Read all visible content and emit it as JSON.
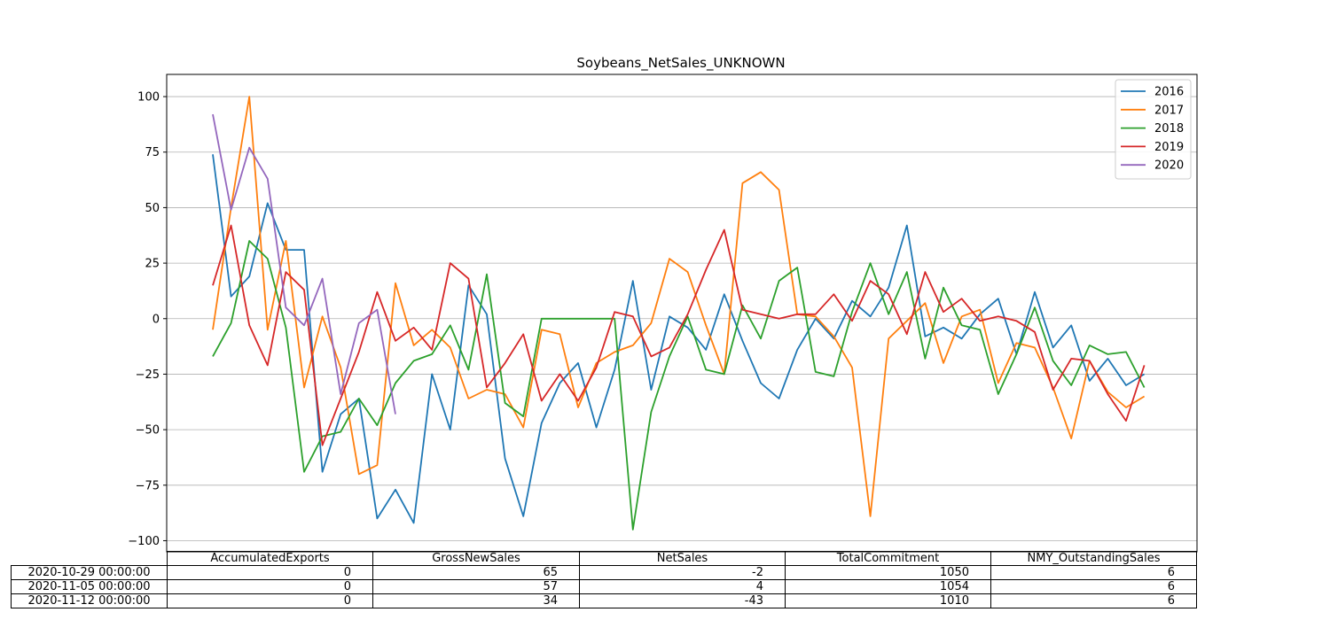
{
  "chart_data": {
    "type": "line",
    "title": "Soybeans_NetSales_UNKNOWN",
    "xlabel": "",
    "ylabel": "",
    "ylim": [
      -105,
      110
    ],
    "yticks": [
      100,
      75,
      50,
      25,
      0,
      -25,
      -50,
      -75,
      -100
    ],
    "ytick_labels": [
      "100",
      "75",
      "50",
      "25",
      "0",
      "−25",
      "−50",
      "−75",
      "−100"
    ],
    "grid": "horizontal",
    "legend_position": "top-right",
    "series": [
      {
        "name": "2016",
        "color": "#1f77b4",
        "values": [
          74,
          10,
          19,
          52,
          31,
          31,
          -69,
          -43,
          -36,
          -90,
          -77,
          -92,
          -25,
          -50,
          15,
          2,
          -63,
          -89,
          -47,
          -29,
          -20,
          -49,
          -23,
          17,
          -32,
          1,
          -4,
          -14,
          11,
          -10,
          -29,
          -36,
          -14,
          0,
          -9,
          8,
          1,
          14,
          42,
          -8,
          -4,
          -9,
          2,
          9,
          -16,
          12,
          -13,
          -3,
          -28,
          -18,
          -30,
          -25
        ]
      },
      {
        "name": "2017",
        "color": "#ff7f0e",
        "values": [
          -5,
          50,
          100,
          -5,
          35,
          -31,
          1,
          -22,
          -70,
          -66,
          16,
          -12,
          -5,
          -13,
          -36,
          -32,
          -34,
          -49,
          -5,
          -7,
          -40,
          -20,
          -15,
          -12,
          -2,
          27,
          21,
          -3,
          -25,
          61,
          66,
          58,
          2,
          1,
          -8,
          -22,
          -89,
          -9,
          -1,
          7,
          -20,
          1,
          4,
          -29,
          -11,
          -13,
          -31,
          -54,
          -19,
          -33,
          -40,
          -35
        ]
      },
      {
        "name": "2018",
        "color": "#2ca02c",
        "values": [
          -17,
          -2,
          35,
          27,
          -4,
          -69,
          -53,
          -51,
          -36,
          -48,
          -29,
          -19,
          -16,
          -3,
          -23,
          20,
          -38,
          -44,
          0,
          0,
          0,
          0,
          0,
          -95,
          -42,
          -17,
          1,
          -23,
          -25,
          6,
          -9,
          17,
          23,
          -24,
          -26,
          3,
          25,
          2,
          21,
          -18,
          14,
          -3,
          -5,
          -34,
          -16,
          5,
          -19,
          -30,
          -12,
          -16,
          -15,
          -31
        ]
      },
      {
        "name": "2019",
        "color": "#d62728",
        "values": [
          15,
          42,
          -3,
          -21,
          21,
          13,
          -57,
          -36,
          -15,
          12,
          -10,
          -4,
          -14,
          25,
          18,
          -31,
          -20,
          -7,
          -37,
          -25,
          -37,
          -22,
          3,
          1,
          -17,
          -13,
          2,
          22,
          40,
          4,
          2,
          0,
          2,
          2,
          11,
          -1,
          17,
          11,
          -7,
          21,
          3,
          9,
          -1,
          1,
          -1,
          -6,
          -32,
          -18,
          -19,
          -34,
          -46,
          -21
        ]
      },
      {
        "name": "2020",
        "color": "#9467bd",
        "values": [
          92,
          49,
          77,
          63,
          5,
          -3,
          18,
          -34,
          -2,
          4,
          -43
        ]
      }
    ],
    "table": {
      "columns": [
        "AccumulatedExports",
        "GrossNewSales",
        "NetSales",
        "TotalCommitment",
        "NMY_OutstandingSales"
      ],
      "rows": [
        {
          "label": "2020-10-29 00:00:00",
          "cells": [
            "0",
            "65",
            "-2",
            "1050",
            "6"
          ]
        },
        {
          "label": "2020-11-05 00:00:00",
          "cells": [
            "0",
            "57",
            "4",
            "1054",
            "6"
          ]
        },
        {
          "label": "2020-11-12 00:00:00",
          "cells": [
            "0",
            "34",
            "-43",
            "1010",
            "6"
          ]
        }
      ]
    }
  }
}
